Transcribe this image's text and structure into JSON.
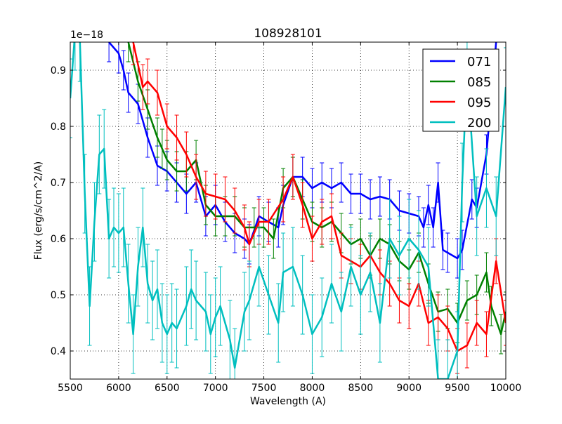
{
  "chart_data": {
    "type": "line",
    "title": "108928101",
    "xlabel": "Wavelength (A)",
    "ylabel": "Flux (erg/s/cm^2/A)",
    "y_offset_label": "1e−18",
    "xlim": [
      5500,
      10000
    ],
    "ylim": [
      0.35,
      0.95
    ],
    "xticks": [
      5500,
      6000,
      6500,
      7000,
      7500,
      8000,
      8500,
      9000,
      9500,
      10000
    ],
    "yticks": [
      0.4,
      0.5,
      0.6,
      0.7,
      0.8,
      0.9
    ],
    "xtick_labels": [
      "5500",
      "6000",
      "6500",
      "7000",
      "7500",
      "8000",
      "8500",
      "9000",
      "9500",
      "10000"
    ],
    "ytick_labels": [
      "0.4",
      "0.5",
      "0.6",
      "0.7",
      "0.8",
      "0.9"
    ],
    "grid": true,
    "legend_position": "top-right",
    "series": [
      {
        "name": "071",
        "color": "#0000ff",
        "yerr": 0.035,
        "x": [
          5900,
          6000,
          6050,
          6100,
          6200,
          6300,
          6400,
          6500,
          6600,
          6700,
          6800,
          6900,
          7000,
          7100,
          7200,
          7300,
          7350,
          7450,
          7550,
          7650,
          7700,
          7800,
          7900,
          8000,
          8100,
          8200,
          8300,
          8400,
          8500,
          8600,
          8700,
          8800,
          8900,
          9000,
          9100,
          9150,
          9200,
          9250,
          9300,
          9350,
          9400,
          9500,
          9550,
          9650,
          9700,
          9800,
          9900
        ],
        "y": [
          0.95,
          0.93,
          0.9,
          0.86,
          0.84,
          0.78,
          0.73,
          0.72,
          0.7,
          0.68,
          0.7,
          0.64,
          0.66,
          0.63,
          0.61,
          0.6,
          0.59,
          0.64,
          0.63,
          0.62,
          0.66,
          0.71,
          0.71,
          0.69,
          0.7,
          0.69,
          0.7,
          0.68,
          0.68,
          0.67,
          0.675,
          0.67,
          0.65,
          0.645,
          0.64,
          0.62,
          0.66,
          0.62,
          0.7,
          0.58,
          0.575,
          0.565,
          0.58,
          0.67,
          0.655,
          0.75,
          0.95
        ]
      },
      {
        "name": "085",
        "color": "#008000",
        "yerr": 0.035,
        "x": [
          6100,
          6200,
          6300,
          6400,
          6450,
          6500,
          6600,
          6700,
          6800,
          6900,
          7000,
          7100,
          7200,
          7300,
          7400,
          7500,
          7600,
          7700,
          7800,
          7900,
          8000,
          8100,
          8200,
          8300,
          8400,
          8500,
          8600,
          8700,
          8800,
          8900,
          9000,
          9100,
          9200,
          9300,
          9400,
          9500,
          9600,
          9700,
          9800,
          9850,
          9950,
          10000
        ],
        "y": [
          0.95,
          0.88,
          0.83,
          0.78,
          0.76,
          0.74,
          0.72,
          0.72,
          0.74,
          0.66,
          0.64,
          0.64,
          0.64,
          0.62,
          0.62,
          0.62,
          0.6,
          0.69,
          0.71,
          0.67,
          0.63,
          0.62,
          0.63,
          0.61,
          0.59,
          0.6,
          0.57,
          0.6,
          0.59,
          0.56,
          0.545,
          0.575,
          0.52,
          0.47,
          0.475,
          0.45,
          0.49,
          0.5,
          0.54,
          0.48,
          0.43,
          0.47
        ]
      },
      {
        "name": "095",
        "color": "#ff0000",
        "yerr": 0.04,
        "x": [
          6150,
          6250,
          6300,
          6400,
          6500,
          6600,
          6700,
          6800,
          6900,
          7000,
          7100,
          7200,
          7300,
          7350,
          7450,
          7550,
          7700,
          7800,
          7900,
          8000,
          8100,
          8200,
          8300,
          8400,
          8500,
          8600,
          8700,
          8800,
          8900,
          9000,
          9100,
          9200,
          9300,
          9400,
          9500,
          9600,
          9700,
          9800,
          9900,
          10000
        ],
        "y": [
          0.95,
          0.87,
          0.88,
          0.86,
          0.8,
          0.78,
          0.75,
          0.71,
          0.68,
          0.675,
          0.67,
          0.65,
          0.62,
          0.59,
          0.63,
          0.63,
          0.67,
          0.71,
          0.66,
          0.6,
          0.63,
          0.64,
          0.57,
          0.56,
          0.55,
          0.57,
          0.54,
          0.52,
          0.49,
          0.48,
          0.52,
          0.45,
          0.46,
          0.44,
          0.4,
          0.41,
          0.45,
          0.43,
          0.56,
          0.45
        ]
      },
      {
        "name": "200",
        "color": "#00bfbf",
        "yerr": 0.07,
        "x": [
          5500,
          5550,
          5600,
          5650,
          5700,
          5750,
          5800,
          5850,
          5900,
          5950,
          6000,
          6050,
          6100,
          6150,
          6200,
          6250,
          6300,
          6350,
          6400,
          6450,
          6500,
          6550,
          6600,
          6700,
          6750,
          6800,
          6900,
          6950,
          7000,
          7050,
          7150,
          7200,
          7300,
          7350,
          7450,
          7550,
          7650,
          7700,
          7800,
          7900,
          8000,
          8100,
          8200,
          8300,
          8400,
          8500,
          8600,
          8700,
          8800,
          8900,
          9000,
          9100,
          9200,
          9300,
          9400,
          9500,
          9550,
          9600,
          9700,
          9800,
          9900,
          10000
        ],
        "y": [
          0.85,
          0.97,
          0.95,
          0.68,
          0.48,
          0.63,
          0.75,
          0.76,
          0.6,
          0.62,
          0.61,
          0.62,
          0.52,
          0.43,
          0.55,
          0.62,
          0.52,
          0.49,
          0.51,
          0.45,
          0.43,
          0.45,
          0.44,
          0.48,
          0.51,
          0.49,
          0.47,
          0.43,
          0.46,
          0.48,
          0.42,
          0.37,
          0.47,
          0.49,
          0.55,
          0.5,
          0.45,
          0.54,
          0.55,
          0.5,
          0.43,
          0.46,
          0.52,
          0.47,
          0.55,
          0.5,
          0.54,
          0.45,
          0.6,
          0.57,
          0.6,
          0.58,
          0.55,
          0.35,
          0.35,
          0.4,
          0.7,
          0.9,
          0.64,
          0.69,
          0.64,
          0.87
        ]
      }
    ]
  }
}
